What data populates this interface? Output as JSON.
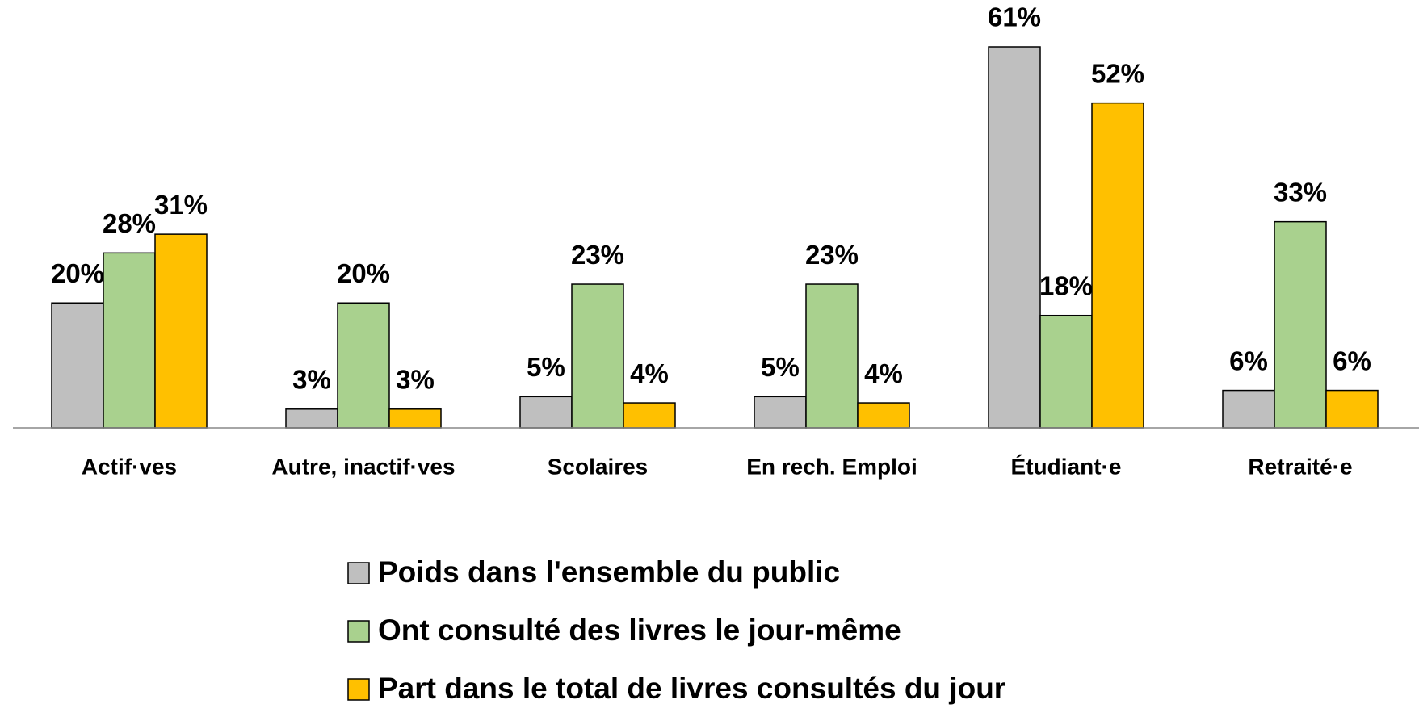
{
  "chart_data": {
    "type": "bar",
    "categories": [
      "Actif·ves",
      "Autre, inactif·ves",
      "Scolaires",
      "En rech. Emploi",
      "Étudiant·e",
      "Retraité·e"
    ],
    "series": [
      {
        "name": "Poids dans l'ensemble du public",
        "color": "#bfbfbf",
        "values": [
          20,
          3,
          5,
          5,
          61,
          6
        ],
        "value_labels": [
          "20%",
          "3%",
          "5%",
          "5%",
          "61%",
          "6%"
        ]
      },
      {
        "name": "Ont consulté des livres le jour-même",
        "color": "#a9d18e",
        "values": [
          28,
          20,
          23,
          23,
          18,
          33
        ],
        "value_labels": [
          "28%",
          "20%",
          "23%",
          "23%",
          "18%",
          "33%"
        ]
      },
      {
        "name": "Part dans le total de livres consultés du jour",
        "color": "#ffc000",
        "values": [
          31,
          3,
          4,
          4,
          52,
          6
        ],
        "value_labels": [
          "31%",
          "3%",
          "4%",
          "4%",
          "52%",
          "6%"
        ]
      }
    ]
  }
}
